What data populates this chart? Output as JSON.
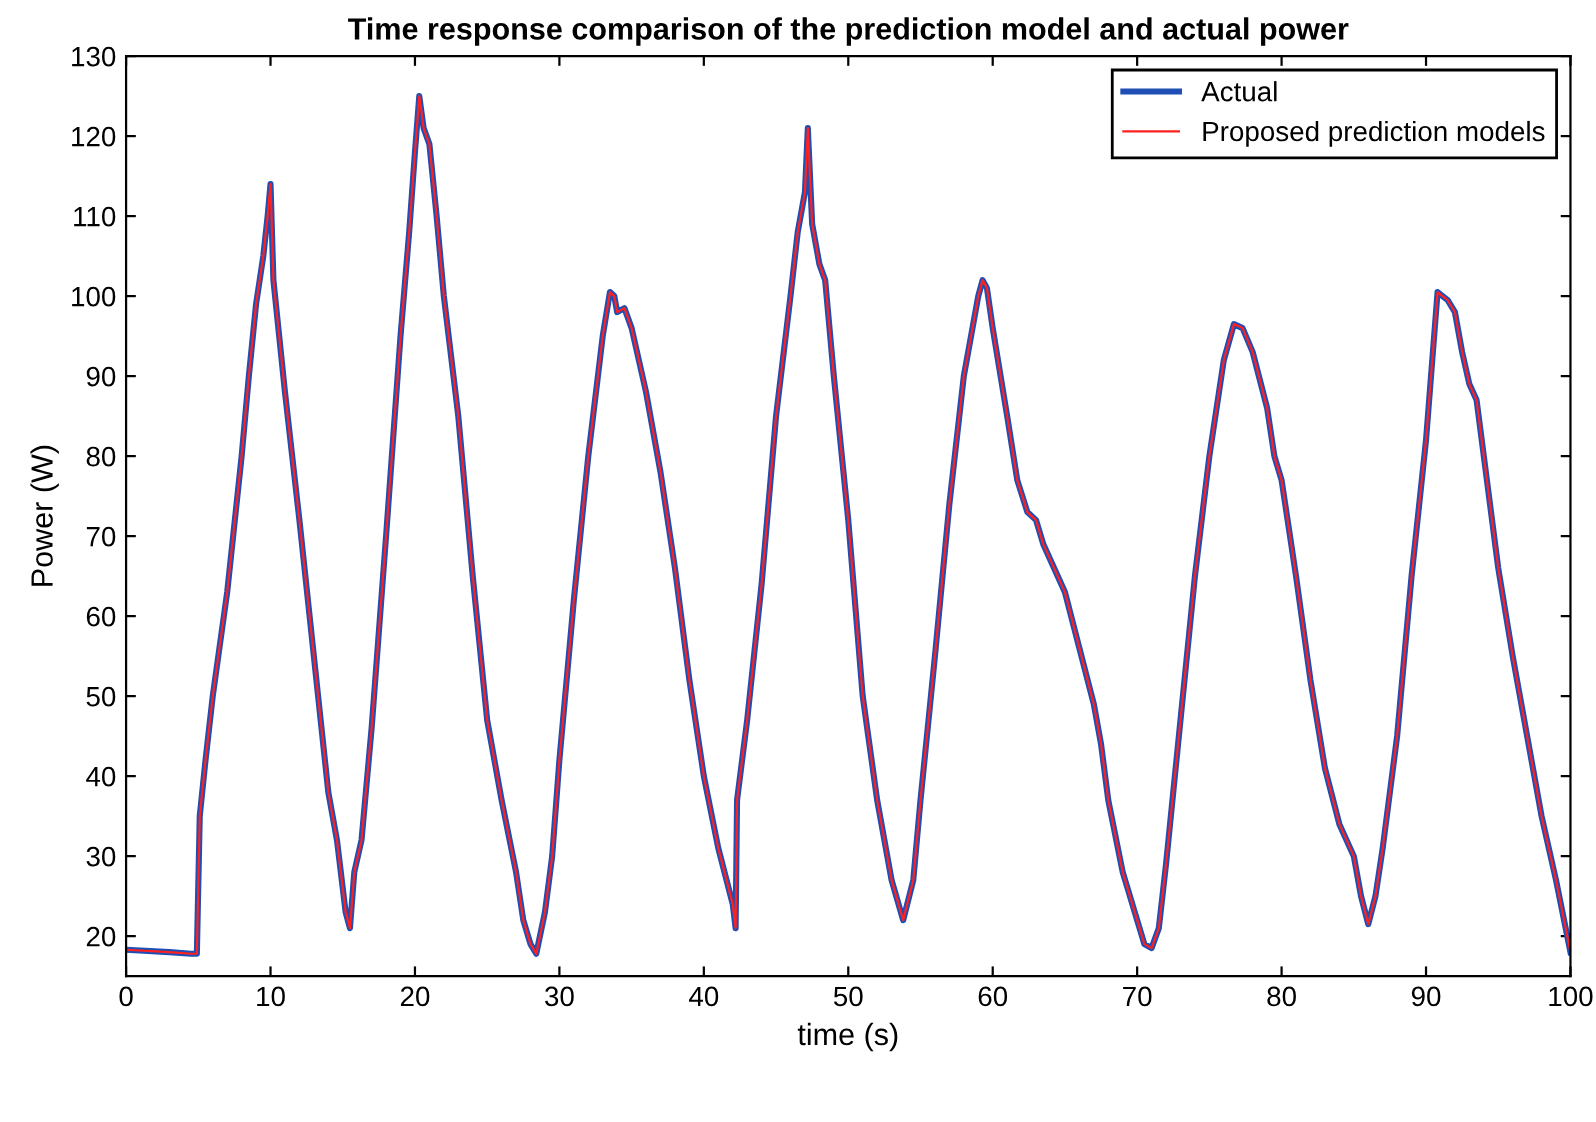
{
  "chart_data": {
    "type": "line",
    "title": "Time response comparison of the prediction model and actual power",
    "xlabel": "time (s)",
    "ylabel": "Power (W)",
    "x": [
      0,
      3,
      4.5,
      4.9,
      5.1,
      5.5,
      6,
      7,
      8,
      8.5,
      9,
      9.5,
      9.8,
      10,
      10.2,
      10.6,
      11,
      12,
      13,
      14,
      14.6,
      15.2,
      15.5,
      15.8,
      16.3,
      17,
      18,
      19,
      19.6,
      20,
      20.3,
      20.6,
      21,
      21.5,
      22,
      23,
      24,
      25,
      26,
      27,
      27.5,
      28,
      28.4,
      29,
      29.5,
      30,
      31,
      32,
      33,
      33.5,
      33.8,
      34,
      34.5,
      35,
      36,
      37,
      38,
      39,
      40,
      41,
      42,
      42.2,
      42.3,
      43,
      44,
      45,
      46,
      46.5,
      47,
      47.2,
      47.5,
      48,
      48.4,
      49,
      50,
      51,
      52,
      53,
      53.8,
      54.5,
      55,
      56,
      57,
      58,
      59,
      59.3,
      59.6,
      60,
      61,
      61.7,
      62.4,
      63,
      63.5,
      64.5,
      65,
      66,
      67,
      67.5,
      68,
      69,
      70,
      70.5,
      71,
      71.5,
      72,
      73,
      74,
      75,
      76,
      76.7,
      77.3,
      78,
      79,
      79.5,
      80,
      81,
      82,
      83,
      84,
      85,
      85.5,
      86,
      86.5,
      87,
      88,
      89,
      90,
      90.8,
      91.5,
      92,
      92.5,
      93,
      93.5,
      94,
      95,
      96,
      97,
      98,
      99,
      100
    ],
    "series": [
      {
        "name": "Actual",
        "color": "#1f4fb4",
        "values": [
          18.3,
          18,
          17.8,
          17.8,
          35,
          42,
          50,
          63,
          80,
          90,
          99,
          105,
          110,
          114,
          102,
          95,
          88,
          72,
          55,
          38,
          32,
          23,
          21,
          28,
          32,
          46,
          70,
          95,
          108,
          118,
          125,
          121,
          119,
          110,
          100,
          85,
          65,
          47,
          37,
          28,
          22,
          19,
          17.8,
          23,
          30,
          42,
          62,
          80,
          95,
          100.5,
          100,
          98,
          98.5,
          96,
          88,
          78,
          66,
          52,
          40,
          31,
          24,
          21,
          37,
          47,
          64,
          85,
          100,
          108,
          113,
          121,
          109,
          104,
          102,
          90,
          72,
          50,
          37,
          27,
          22,
          27,
          37,
          55,
          74,
          90,
          100,
          102,
          101,
          96,
          85,
          77,
          73,
          72,
          69,
          65,
          63,
          56,
          49,
          44,
          37,
          28,
          22,
          19,
          18.5,
          21,
          29,
          47,
          65,
          80,
          92,
          96.5,
          96,
          93,
          86,
          80,
          77,
          65,
          52,
          41,
          34,
          30,
          25,
          21.5,
          25,
          31,
          45,
          65,
          82,
          100.5,
          99.5,
          98,
          93,
          89,
          87,
          80,
          66,
          55,
          45,
          35,
          27,
          18
        ]
      },
      {
        "name": "Proposed prediction models",
        "color": "#ff2020",
        "values": [
          18.3,
          18,
          17.8,
          17.8,
          35,
          42,
          50,
          63,
          80,
          90,
          99,
          105,
          110,
          114,
          102,
          95,
          88,
          72,
          55,
          38,
          32,
          23,
          21,
          28,
          32,
          46,
          70,
          95,
          108,
          118,
          125,
          121,
          119,
          110,
          100,
          85,
          65,
          47,
          37,
          28,
          22,
          19,
          17.8,
          23,
          30,
          42,
          62,
          80,
          95,
          100.5,
          100,
          98,
          98.5,
          96,
          88,
          78,
          66,
          52,
          40,
          31,
          24,
          21,
          37,
          47,
          64,
          85,
          100,
          108,
          113,
          121,
          109,
          104,
          102,
          90,
          72,
          50,
          37,
          27,
          22,
          27,
          37,
          55,
          74,
          90,
          100,
          102,
          101,
          96,
          85,
          77,
          73,
          72,
          69,
          65,
          63,
          56,
          49,
          44,
          37,
          28,
          22,
          19,
          18.5,
          21,
          29,
          47,
          65,
          80,
          92,
          96.5,
          96,
          93,
          86,
          80,
          77,
          65,
          52,
          41,
          34,
          30,
          25,
          21.5,
          25,
          31,
          45,
          65,
          82,
          100.5,
          99.5,
          98,
          93,
          89,
          87,
          80,
          66,
          55,
          45,
          35,
          27,
          18
        ]
      }
    ],
    "xlim": [
      0,
      100
    ],
    "xticks": [
      0,
      10,
      20,
      30,
      40,
      50,
      60,
      70,
      80,
      90,
      100
    ],
    "ylim": [
      15,
      130
    ],
    "yticks": [
      20,
      30,
      40,
      50,
      60,
      70,
      80,
      90,
      100,
      110,
      120,
      130
    ],
    "grid": false,
    "legend": "top right",
    "marker": "none",
    "line_style": "solid"
  }
}
